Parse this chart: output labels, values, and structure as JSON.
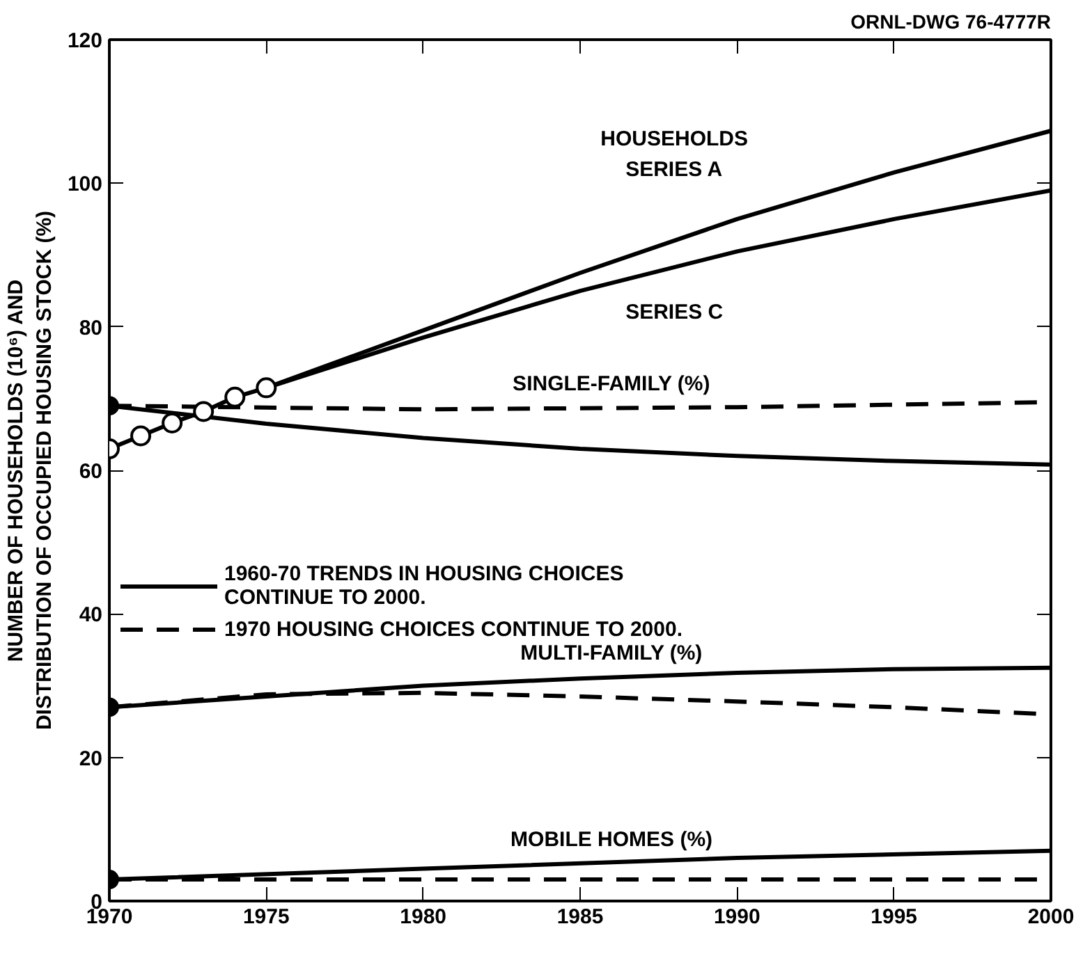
{
  "chart_data": {
    "type": "line",
    "ylabel": "NUMBER OF HOUSEHOLDS (10⁶) AND\nDISTRIBUTION OF OCCUPIED HOUSING STOCK (%)",
    "xlim": [
      1970,
      2000
    ],
    "xticks": [
      1970,
      1975,
      1980,
      1985,
      1990,
      1995,
      2000
    ],
    "ylim": [
      0,
      120
    ],
    "yticks": [
      0,
      20,
      40,
      60,
      80,
      100,
      120
    ],
    "grid": false,
    "legend": "left",
    "series": [
      {
        "name": "1960-70 TRENDS IN HOUSING CHOICES\nCONTINUE TO 2000.",
        "color": "#000000",
        "line_style": "solid",
        "x": [
          1970,
          1975,
          1980,
          1985,
          1990,
          1995,
          2000
        ],
        "values": [
          69,
          66.5,
          64.5,
          63,
          62,
          61.3,
          60.8
        ]
      },
      {
        "name": "1970 HOUSING CHOICES CONTINUE TO 2000.",
        "color": "#000000",
        "line_style": "dashed",
        "x": [
          1970,
          1980,
          1990,
          2000
        ],
        "values": [
          69,
          68.5,
          68.8,
          69.5
        ]
      },
      {
        "color": "#000000",
        "line_style": "solid",
        "x": [
          1975,
          1980,
          1985,
          1990,
          1995,
          2000
        ],
        "values": [
          71.5,
          79.5,
          87.5,
          95,
          101.5,
          107.3
        ]
      },
      {
        "color": "#000000",
        "line_style": "solid",
        "x": [
          1975,
          1980,
          1985,
          1990,
          1995,
          2000
        ],
        "values": [
          71.5,
          78.5,
          85,
          90.5,
          95,
          99
        ]
      },
      {
        "color": "#000000",
        "line_style": "solid",
        "marker": "circle",
        "x": [
          1970,
          1971,
          1972,
          1973,
          1974,
          1975
        ],
        "values": [
          63,
          64.8,
          66.6,
          68.2,
          70.2,
          71.5
        ]
      },
      {
        "color": "#000000",
        "line_style": "solid",
        "x": [
          1970,
          1975,
          1980,
          1985,
          1990,
          1995,
          2000
        ],
        "values": [
          27,
          28.5,
          30,
          31,
          31.8,
          32.3,
          32.5
        ]
      },
      {
        "color": "#000000",
        "line_style": "dashed",
        "x": [
          1970,
          1975,
          1980,
          1985,
          1990,
          1995,
          2000
        ],
        "values": [
          27,
          28.8,
          29,
          28.5,
          27.8,
          27,
          26
        ]
      },
      {
        "color": "#000000",
        "line_style": "solid",
        "x": [
          1970,
          1980,
          1990,
          2000
        ],
        "values": [
          3,
          4.5,
          6,
          7
        ]
      },
      {
        "color": "#000000",
        "line_style": "dashed",
        "x": [
          1970,
          2000
        ],
        "values": [
          3,
          3
        ]
      },
      {
        "type": "scatter",
        "color": "#000000",
        "marker": "circle",
        "x": [
          1970,
          1970,
          1970
        ],
        "values": [
          69,
          27,
          3
        ]
      }
    ],
    "annotations": [
      "HOUSEHOLDS\nSERIES A",
      "SERIES C",
      "SINGLE-FAMILY (%)",
      "MULTI-FAMILY (%)",
      "MOBILE HOMES (%)",
      "ORNL-DWG 76-4777R"
    ]
  }
}
